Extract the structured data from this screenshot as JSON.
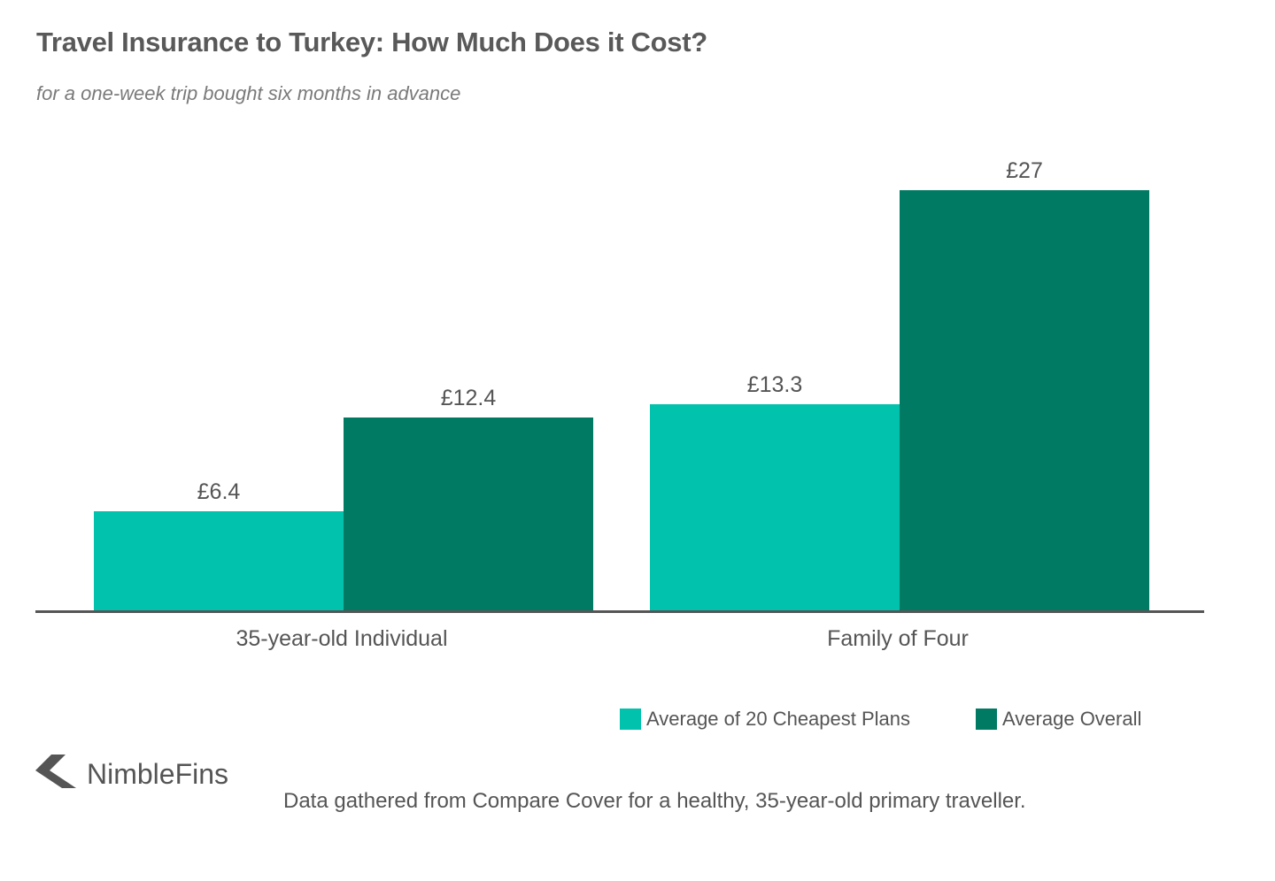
{
  "header": {
    "title": "Travel Insurance to Turkey: How Much Does it Cost?",
    "subtitle": "for a one-week trip bought six months in advance"
  },
  "colors": {
    "cheapest": "#00c2ad",
    "overall": "#017a64",
    "axis": "#555555",
    "text": "#555555"
  },
  "chart_data": {
    "type": "bar",
    "title": "Travel Insurance to Turkey: How Much Does it Cost?",
    "subtitle": "for a one-week trip bought six months in advance",
    "categories": [
      "35-year-old Individual",
      "Family of Four"
    ],
    "series": [
      {
        "name": "Average of 20 Cheapest Plans",
        "values": [
          6.4,
          13.3
        ],
        "labels": [
          "£6.4",
          "£13.3"
        ],
        "color": "#00c2ad"
      },
      {
        "name": "Average Overall",
        "values": [
          12.4,
          27
        ],
        "labels": [
          "£12.4",
          "£27"
        ],
        "color": "#017a64"
      }
    ],
    "xlabel": "",
    "ylabel": "",
    "ylim": [
      0,
      27
    ],
    "grid": false,
    "legend_position": "bottom-right",
    "value_prefix": "£"
  },
  "legend": {
    "items": [
      {
        "label": "Average of 20 Cheapest Plans"
      },
      {
        "label": "Average Overall"
      }
    ]
  },
  "footer": {
    "brand": "NimbleFins",
    "brand_icon": "chevron-left-icon",
    "note": "Data gathered from Compare Cover for a healthy, 35-year-old primary traveller."
  }
}
